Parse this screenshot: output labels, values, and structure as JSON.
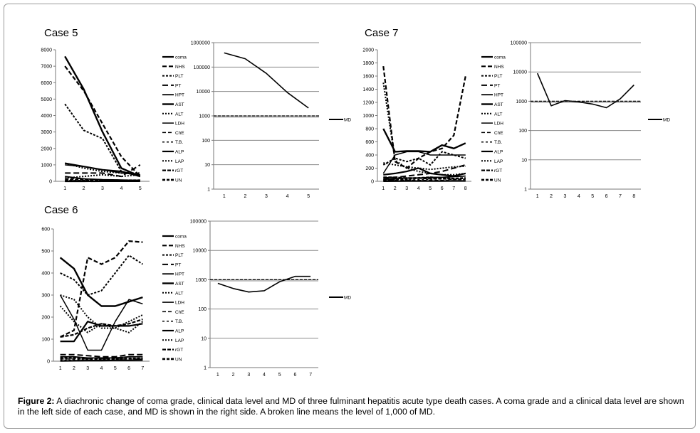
{
  "caption": {
    "label": "Figure 2:",
    "text": "A diachronic change of coma grade, clinical data level and MD of three fulminant hepatitis acute type death cases. A coma grade and a clinical data level are shown in the left side of each case, and MD is shown in the right side. A broken line means the level of 1,000 of MD."
  },
  "legend_items": [
    "coma",
    "NHS",
    "PLT",
    "PT",
    "HPT",
    "AST",
    "ALT",
    "LDH",
    "ChE",
    "T.B.",
    "ALP",
    "LAP",
    "rGT",
    "UN"
  ],
  "chart_data": [
    {
      "id": "case5-clinical",
      "type": "line",
      "title": "Case 5",
      "categories": [
        "1",
        "2",
        "3",
        "4",
        "5"
      ],
      "ylim": [
        0,
        8000
      ],
      "yticks": [
        "0",
        "1000",
        "2000",
        "3000",
        "4000",
        "5000",
        "6000",
        "7000",
        "8000"
      ],
      "series": [
        {
          "name": "coma",
          "values": [
            1,
            2,
            3,
            4,
            4
          ]
        },
        {
          "name": "NHS",
          "values": [
            7000,
            5500,
            3500,
            1500,
            300
          ]
        },
        {
          "name": "PLT",
          "values": [
            4700,
            3100,
            2600,
            600,
            300
          ]
        },
        {
          "name": "PT",
          "values": [
            500,
            500,
            500,
            300,
            1000
          ]
        },
        {
          "name": "HPT",
          "values": [
            300,
            150,
            100,
            80,
            50
          ]
        },
        {
          "name": "AST",
          "values": [
            7600,
            5600,
            3000,
            800,
            300
          ]
        },
        {
          "name": "ALT",
          "values": [
            1100,
            800,
            600,
            500,
            500
          ]
        },
        {
          "name": "LDH",
          "values": [
            1000,
            900,
            700,
            500,
            400
          ]
        },
        {
          "name": "ChE",
          "values": [
            200,
            150,
            100,
            80,
            50
          ]
        },
        {
          "name": "T.B.",
          "values": [
            10,
            15,
            20,
            25,
            30
          ]
        },
        {
          "name": "ALP",
          "values": [
            1100,
            900,
            700,
            600,
            300
          ]
        },
        {
          "name": "LAP",
          "values": [
            200,
            300,
            400,
            300,
            400
          ]
        },
        {
          "name": "rGT",
          "values": [
            100,
            100,
            80,
            60,
            50
          ]
        },
        {
          "name": "UN",
          "values": [
            20,
            30,
            40,
            50,
            60
          ]
        }
      ]
    },
    {
      "id": "case5-md",
      "type": "line",
      "title": "",
      "scale": "log",
      "categories": [
        "1",
        "2",
        "3",
        "4",
        "5"
      ],
      "ylim": [
        1,
        1000000
      ],
      "yticks": [
        "1",
        "10",
        "100",
        "1000",
        "10000",
        "100000",
        "1000000"
      ],
      "reference": 1000,
      "legend": "MD",
      "series": [
        {
          "name": "MD",
          "values": [
            380000,
            220000,
            55000,
            9000,
            2100
          ]
        }
      ]
    },
    {
      "id": "case7-clinical",
      "type": "line",
      "title": "Case 7",
      "categories": [
        "1",
        "2",
        "3",
        "4",
        "5",
        "6",
        "7",
        "8"
      ],
      "ylim": [
        0,
        2000
      ],
      "yticks": [
        "0",
        "200",
        "400",
        "600",
        "800",
        "1000",
        "1200",
        "1400",
        "1600",
        "1800",
        "2000"
      ],
      "series": [
        {
          "name": "coma",
          "values": [
            1,
            2,
            3,
            4,
            4,
            4,
            5,
            5
          ]
        },
        {
          "name": "NHS",
          "values": [
            1750,
            300,
            200,
            350,
            450,
            500,
            700,
            1600
          ]
        },
        {
          "name": "PLT",
          "values": [
            250,
            350,
            300,
            350,
            250,
            450,
            400,
            350
          ]
        },
        {
          "name": "PT",
          "values": [
            50,
            60,
            80,
            100,
            120,
            150,
            200,
            250
          ]
        },
        {
          "name": "HPT",
          "values": [
            30,
            40,
            50,
            50,
            60,
            60,
            70,
            80
          ]
        },
        {
          "name": "AST",
          "values": [
            800,
            450,
            460,
            460,
            450,
            550,
            500,
            580
          ]
        },
        {
          "name": "ALT",
          "values": [
            1500,
            320,
            200,
            150,
            120,
            100,
            100,
            120
          ]
        },
        {
          "name": "LDH",
          "values": [
            120,
            400,
            450,
            450,
            400,
            400,
            400,
            400
          ]
        },
        {
          "name": "ChE",
          "values": [
            20,
            20,
            20,
            15,
            15,
            15,
            10,
            10
          ]
        },
        {
          "name": "T.B.",
          "values": [
            10,
            15,
            20,
            25,
            30,
            35,
            40,
            45
          ]
        },
        {
          "name": "ALP",
          "values": [
            100,
            120,
            150,
            200,
            120,
            100,
            80,
            120
          ]
        },
        {
          "name": "LAP",
          "values": [
            280,
            250,
            220,
            200,
            180,
            200,
            220,
            230
          ]
        },
        {
          "name": "rGT",
          "values": [
            60,
            60,
            50,
            50,
            40,
            40,
            30,
            30
          ]
        },
        {
          "name": "UN",
          "values": [
            20,
            30,
            40,
            50,
            60,
            50,
            40,
            50
          ]
        }
      ]
    },
    {
      "id": "case7-md",
      "type": "line",
      "title": "",
      "scale": "log",
      "categories": [
        "1",
        "2",
        "3",
        "4",
        "5",
        "6",
        "7",
        "8"
      ],
      "ylim": [
        1,
        100000
      ],
      "yticks": [
        "1",
        "10",
        "100",
        "1000",
        "10000",
        "100000"
      ],
      "reference": 1000,
      "legend": "MD",
      "series": [
        {
          "name": "MD",
          "values": [
            9000,
            700,
            1050,
            950,
            800,
            600,
            1200,
            3600
          ]
        }
      ]
    },
    {
      "id": "case6-clinical",
      "type": "line",
      "title": "Case 6",
      "categories": [
        "1",
        "2",
        "3",
        "4",
        "5",
        "6",
        "7"
      ],
      "ylim": [
        0,
        600
      ],
      "yticks": [
        "0",
        "100",
        "200",
        "300",
        "400",
        "500",
        "600"
      ],
      "series": [
        {
          "name": "coma",
          "values": [
            1,
            2,
            3,
            3,
            4,
            4,
            5
          ]
        },
        {
          "name": "NHS",
          "values": [
            110,
            140,
            470,
            440,
            470,
            545,
            540
          ]
        },
        {
          "name": "PLT",
          "values": [
            400,
            370,
            300,
            320,
            400,
            480,
            440
          ]
        },
        {
          "name": "PT",
          "values": [
            30,
            30,
            25,
            20,
            20,
            30,
            30
          ]
        },
        {
          "name": "HPT",
          "values": [
            20,
            20,
            15,
            15,
            15,
            20,
            20
          ]
        },
        {
          "name": "AST",
          "values": [
            470,
            420,
            300,
            250,
            250,
            270,
            290
          ]
        },
        {
          "name": "ALT",
          "values": [
            300,
            280,
            200,
            150,
            150,
            180,
            210
          ]
        },
        {
          "name": "LDH",
          "values": [
            300,
            190,
            50,
            50,
            180,
            280,
            260
          ]
        },
        {
          "name": "ChE",
          "values": [
            10,
            10,
            10,
            10,
            10,
            10,
            10
          ]
        },
        {
          "name": "T.B.",
          "values": [
            5,
            6,
            7,
            8,
            9,
            10,
            11
          ]
        },
        {
          "name": "ALP",
          "values": [
            90,
            90,
            180,
            160,
            160,
            160,
            170
          ]
        },
        {
          "name": "LAP",
          "values": [
            250,
            180,
            130,
            170,
            150,
            130,
            180
          ]
        },
        {
          "name": "rGT",
          "values": [
            110,
            120,
            150,
            170,
            160,
            170,
            190
          ]
        },
        {
          "name": "UN",
          "values": [
            15,
            15,
            12,
            10,
            10,
            12,
            12
          ]
        }
      ]
    },
    {
      "id": "case6-md",
      "type": "line",
      "title": "",
      "scale": "log",
      "categories": [
        "1",
        "2",
        "3",
        "4",
        "5",
        "6",
        "7"
      ],
      "ylim": [
        1,
        100000
      ],
      "yticks": [
        "1",
        "10",
        "100",
        "1000",
        "10000",
        "100000"
      ],
      "reference": 1000,
      "legend": "MD",
      "series": [
        {
          "name": "MD",
          "values": [
            750,
            500,
            380,
            420,
            850,
            1300,
            1300
          ]
        }
      ]
    }
  ]
}
